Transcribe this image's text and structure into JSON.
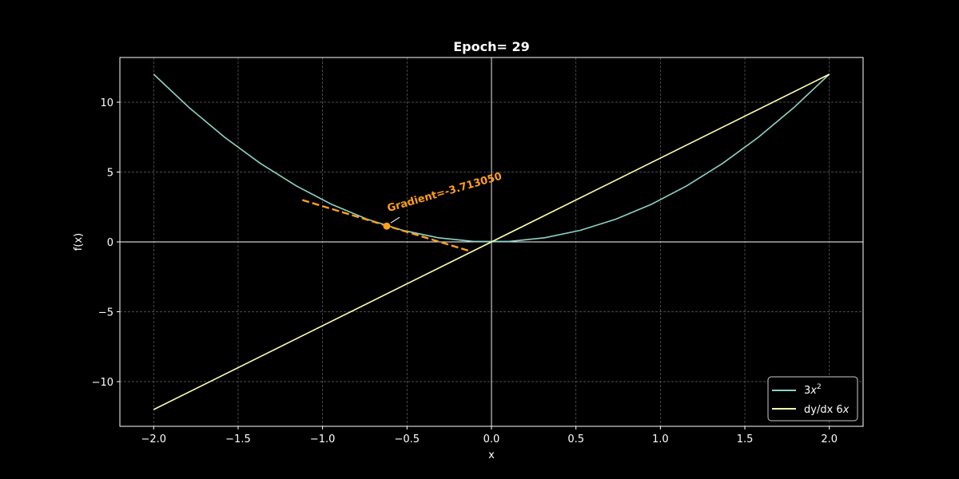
{
  "chart_data": {
    "type": "line",
    "title": "Epoch=  29",
    "xlabel": "x",
    "ylabel": "f(x)",
    "xlim": [
      -2.2,
      2.2
    ],
    "ylim": [
      -13.2,
      13.2
    ],
    "xticks": [
      -2.0,
      -1.5,
      -1.0,
      -0.5,
      0.0,
      0.5,
      1.0,
      1.5,
      2.0
    ],
    "xtick_labels": [
      "−2.0",
      "−1.5",
      "−1.0",
      "−0.5",
      "0.0",
      "0.5",
      "1.0",
      "1.5",
      "2.0"
    ],
    "yticks": [
      -10,
      -5,
      0,
      5,
      10
    ],
    "ytick_labels": [
      "−10",
      "−5",
      "0",
      "5",
      "10"
    ],
    "grid": true,
    "series": [
      {
        "name": "3x^2",
        "legend_main": "3",
        "legend_italic": "x",
        "legend_sup": "2",
        "color": "#8dd3c7",
        "x": [
          -2.0,
          -1.7895,
          -1.5789,
          -1.3684,
          -1.1579,
          -0.9474,
          -0.7368,
          -0.5263,
          -0.3158,
          -0.1053,
          0.1053,
          0.3158,
          0.5263,
          0.7368,
          0.9474,
          1.1579,
          1.3684,
          1.5789,
          1.7895,
          2.0
        ],
        "y": [
          12.0,
          9.607,
          7.479,
          5.618,
          4.022,
          2.693,
          1.629,
          0.831,
          0.299,
          0.033,
          0.033,
          0.299,
          0.831,
          1.629,
          2.693,
          4.022,
          5.618,
          7.479,
          9.607,
          12.0
        ]
      },
      {
        "name": "dy/dx 6x",
        "legend_main": "dy/dx 6",
        "legend_italic": "x",
        "color": "#ffffb3",
        "x": [
          -2.0,
          2.0
        ],
        "y": [
          -12.0,
          12.0
        ]
      }
    ],
    "tangent": {
      "color": "#ff9f1a",
      "x": [
        -1.12,
        -0.13
      ],
      "y": [
        3.0,
        -0.65
      ]
    },
    "point": {
      "x": -0.62,
      "y": 1.13,
      "color": "#ff9f1a"
    },
    "annotation": {
      "text": "Gradient=-3.713050",
      "color": "#ff9f1a",
      "rotation_deg": -16
    },
    "legend_location": "lower-right"
  }
}
